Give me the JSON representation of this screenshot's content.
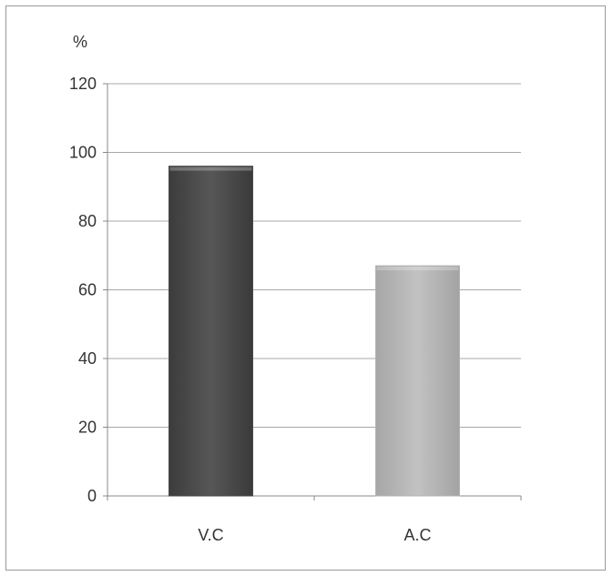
{
  "chart_data": {
    "type": "bar",
    "ylabel": "%",
    "categories": [
      "V.C",
      "A.C"
    ],
    "values": [
      96,
      67
    ],
    "colors": [
      "#4a4a4a",
      "#b3b3b3"
    ],
    "ylim": [
      0,
      120
    ],
    "yticks": [
      0,
      20,
      40,
      60,
      80,
      100,
      120
    ],
    "grid": true,
    "legend": "none"
  }
}
